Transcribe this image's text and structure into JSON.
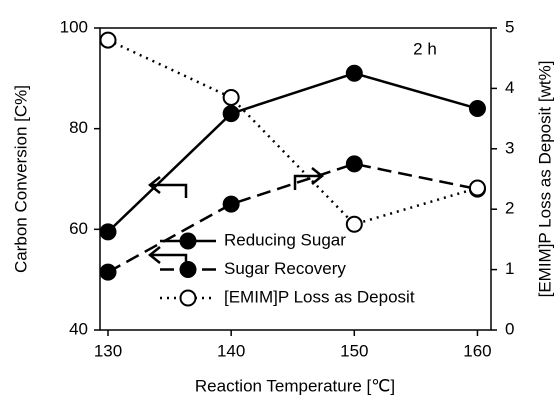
{
  "chart_data": {
    "type": "line",
    "annotation": "2 h",
    "x_label": "Reaction Temperature [℃]",
    "y_label": "Carbon Conversion [C%]",
    "y2_label": "[EMIM]P Loss as Deposit [wt%]",
    "x": [
      130,
      140,
      150,
      160
    ],
    "xlim": [
      129.35,
      161.1
    ],
    "xticks": [
      130,
      140,
      150,
      160
    ],
    "ylim": [
      40,
      100
    ],
    "yticks": [
      40,
      60,
      80,
      100
    ],
    "y2lim": [
      0,
      5
    ],
    "y2ticks": [
      0,
      1,
      2,
      3,
      4,
      5
    ],
    "legend": "lower right",
    "series": [
      {
        "name": "Reducing Sugar",
        "color": "#000000",
        "dash": "solid",
        "marker": "filled",
        "values": [
          59.5,
          83,
          91,
          84
        ]
      },
      {
        "name": "Sugar Recovery",
        "color": "#000000",
        "dash": "dashed",
        "marker": "filled",
        "values": [
          51.5,
          65,
          73,
          68
        ]
      },
      {
        "name": "[EMIM]P Loss as Deposit",
        "color": "#000000",
        "dash": "dotted",
        "marker": "open",
        "axis": "y2",
        "values": [
          4.8,
          3.85,
          1.75,
          2.35
        ]
      }
    ]
  }
}
